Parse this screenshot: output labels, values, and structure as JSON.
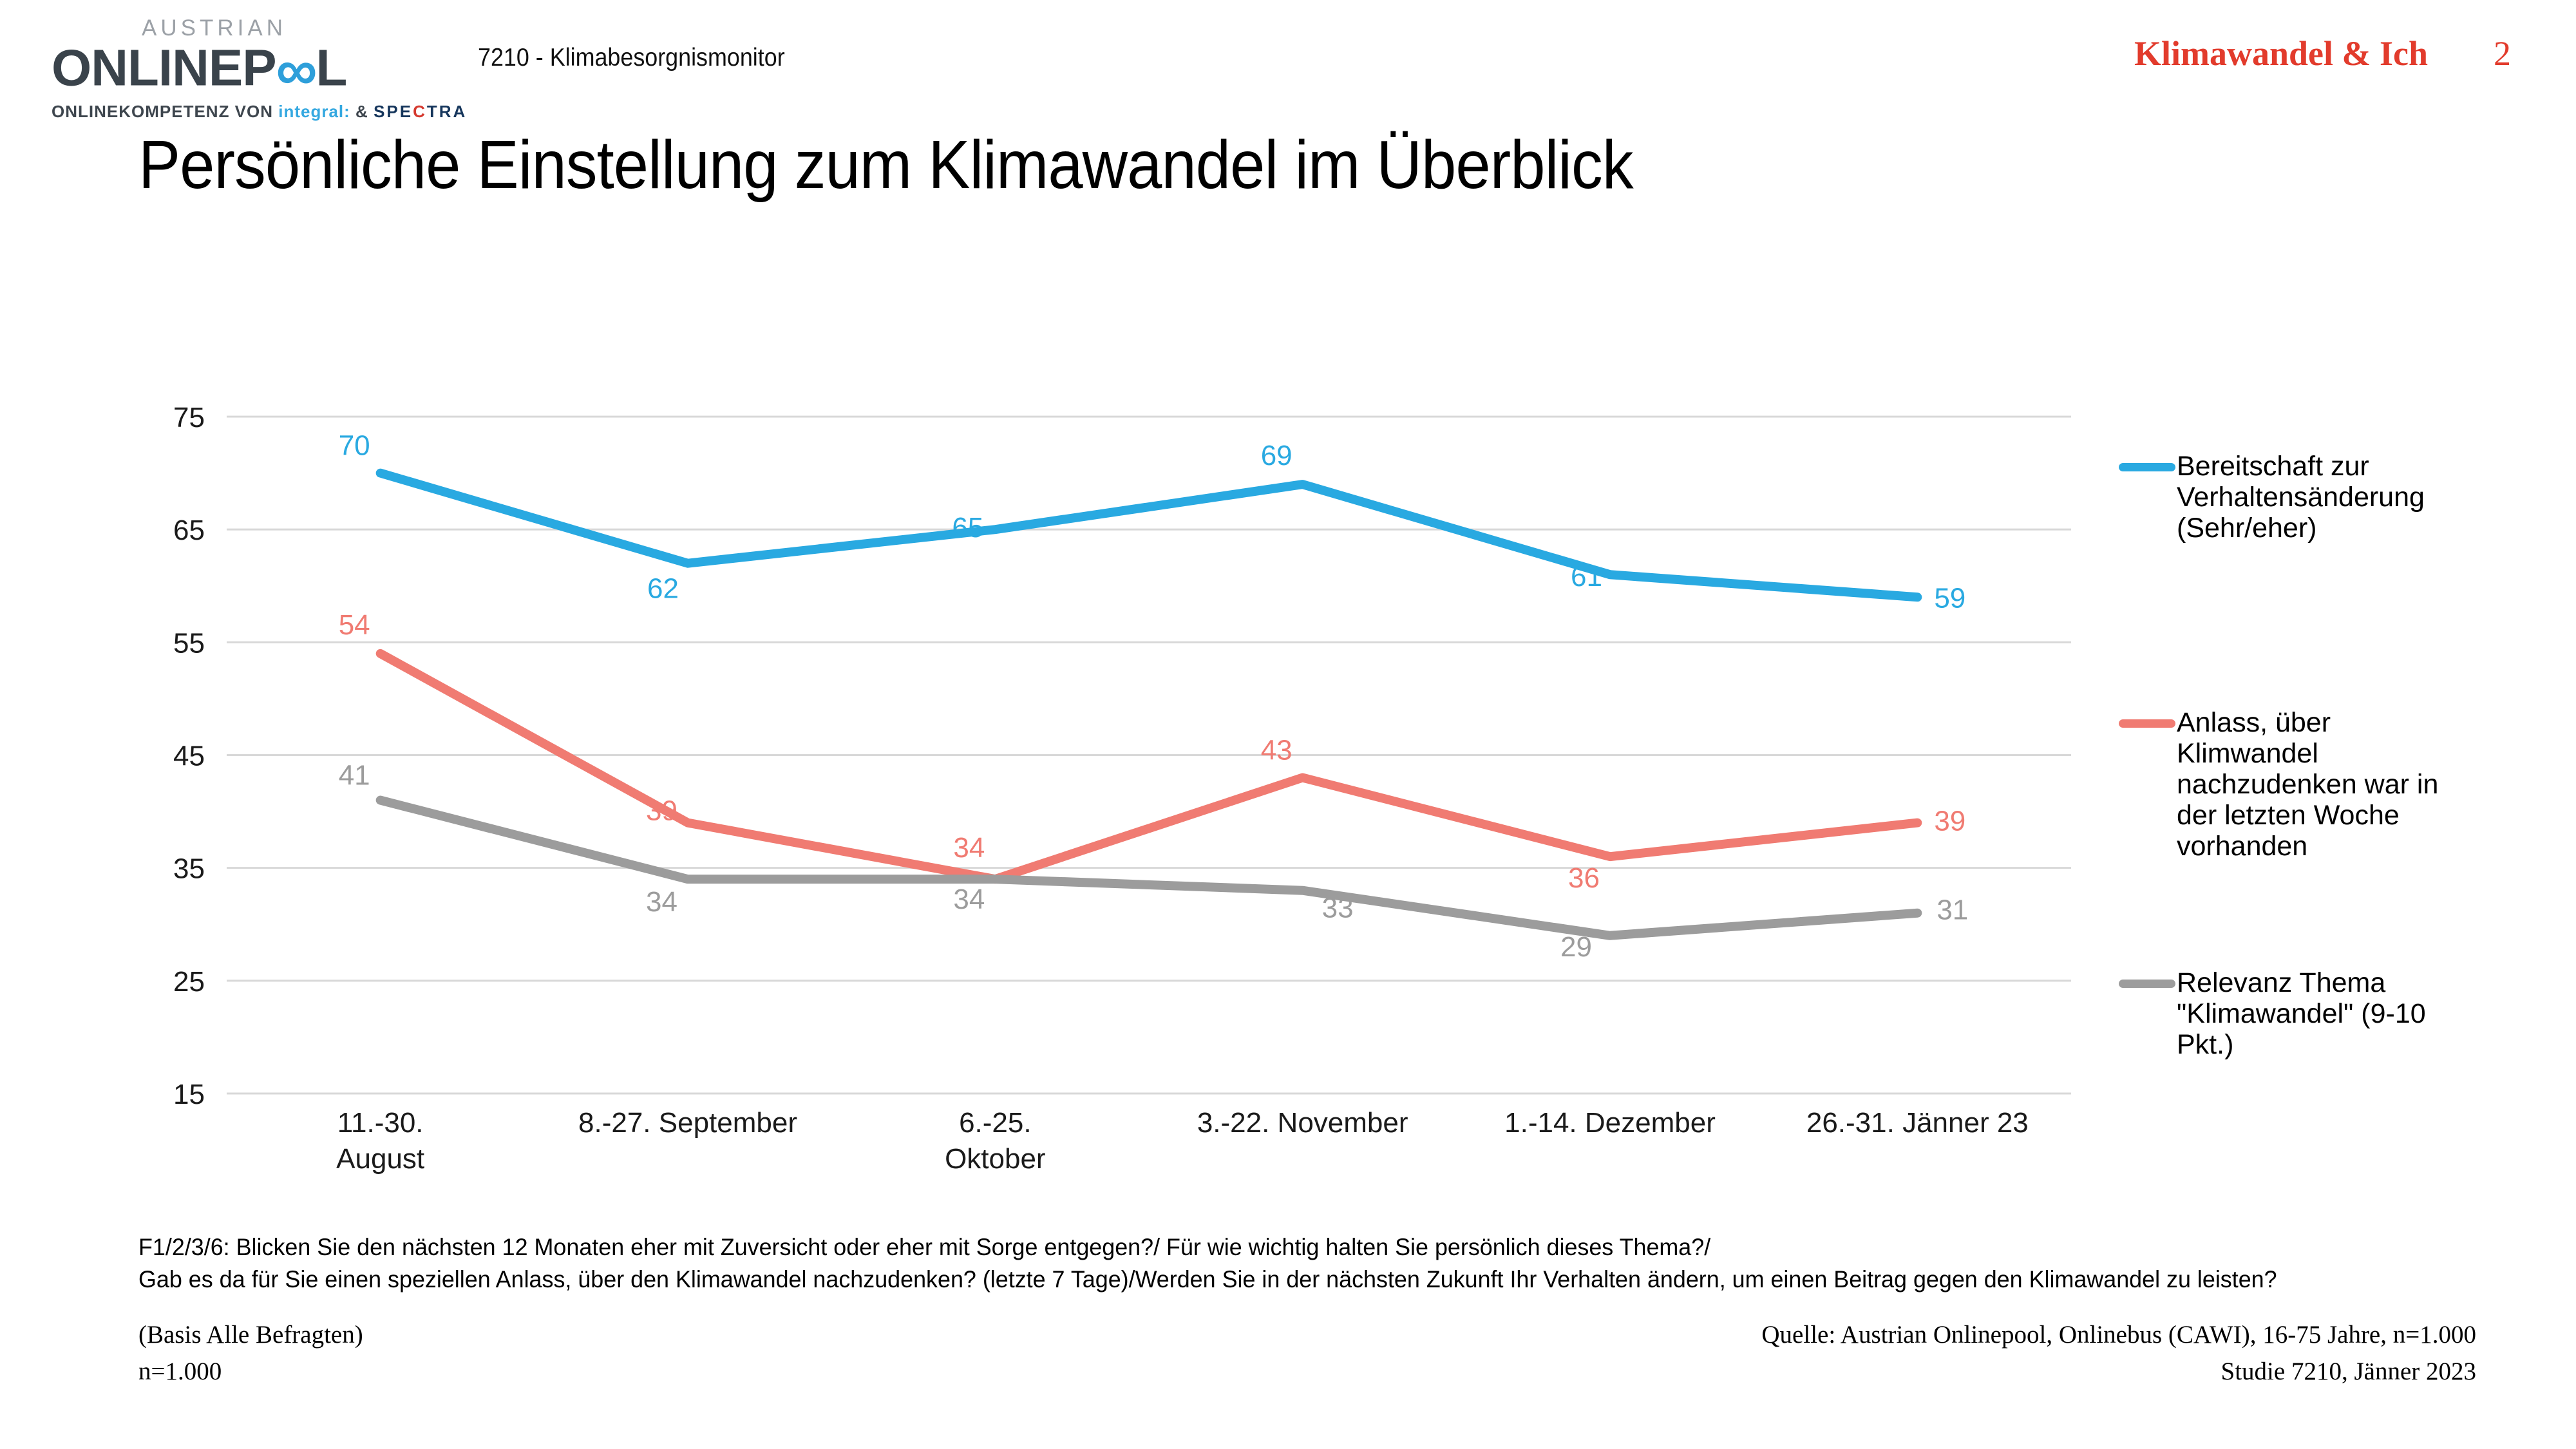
{
  "header": {
    "logo": {
      "austrian": "AUSTRIAN",
      "brand_left": "ONLINEP",
      "brand_infinity": "∞",
      "brand_right": "L",
      "tagline_prefix": "ONLINEKOMPETENZ VON ",
      "tagline_integral": "integral:",
      "tagline_amp": " & ",
      "tagline_spectra_pre": "SPE",
      "tagline_spectra_c": "C",
      "tagline_spectra_post": "TRA"
    },
    "doc_label": "7210 - Klimabesorgnismonitor",
    "report_title": "Klimawandel & Ich",
    "page_number": "2",
    "accent_red": "#E23B2C"
  },
  "title": "Persönliche Einstellung zum Klimawandel im Überblick",
  "chart_data": {
    "type": "line",
    "categories": [
      "11.-30.\nAugust",
      "8.-27. September",
      "6.-25.\nOktober",
      "3.-22. November",
      "1.-14. Dezember",
      "26.-31. Jänner 23"
    ],
    "series": [
      {
        "name": "Bereitschaft zur Verhaltensänderung (Sehr/eher)",
        "color": "#29A9E1",
        "values": [
          70,
          62,
          65,
          69,
          61,
          59
        ]
      },
      {
        "name": "Anlass, über Klimwandel nachzudenken war in der letzten Woche vorhanden",
        "color": "#F07B72",
        "values": [
          54,
          39,
          34,
          43,
          36,
          39
        ]
      },
      {
        "name": "Relevanz Thema \"Klimawandel\" (9-10 Pkt.)",
        "color": "#9C9C9C",
        "values": [
          41,
          34,
          34,
          33,
          29,
          31
        ]
      }
    ],
    "ylim": [
      15,
      75
    ],
    "yticks": [
      75,
      65,
      55,
      45,
      35,
      25,
      15
    ],
    "grid": true,
    "gridline_color": "#D8D8D8",
    "legend_position": "right",
    "title": "",
    "xlabel": "",
    "ylabel": ""
  },
  "footer": {
    "question_line1": "F1/2/3/6: Blicken Sie den nächsten 12 Monaten eher mit Zuversicht oder eher mit Sorge entgegen?/ Für wie wichtig halten Sie persönlich dieses Thema?/",
    "question_line2": "Gab es da für Sie einen speziellen Anlass, über den Klimawandel nachzudenken? (letzte 7 Tage)/Werden Sie in der nächsten Zukunft Ihr Verhalten ändern, um einen Beitrag gegen den Klimawandel zu leisten?",
    "basis_line1": "(Basis Alle Befragten)",
    "basis_line2": "n=1.000",
    "source_line1": "Quelle: Austrian Onlinepool, Onlinebus (CAWI), 16-75 Jahre, n=1.000",
    "source_line2": "Studie 7210, Jänner 2023"
  }
}
